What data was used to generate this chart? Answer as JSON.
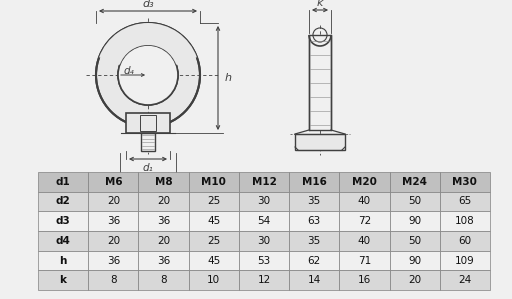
{
  "bg_color": "#f0f0f0",
  "table_header_row": [
    "d1",
    "M6",
    "M8",
    "M10",
    "M12",
    "M16",
    "M20",
    "M24",
    "M30"
  ],
  "table_rows": [
    [
      "d2",
      "20",
      "20",
      "25",
      "30",
      "35",
      "40",
      "50",
      "65"
    ],
    [
      "d3",
      "36",
      "36",
      "45",
      "54",
      "63",
      "72",
      "90",
      "108"
    ],
    [
      "d4",
      "20",
      "20",
      "25",
      "30",
      "35",
      "40",
      "50",
      "60"
    ],
    [
      "h",
      "36",
      "36",
      "45",
      "53",
      "62",
      "71",
      "90",
      "109"
    ],
    [
      "k",
      "8",
      "8",
      "10",
      "12",
      "14",
      "16",
      "20",
      "24"
    ]
  ],
  "header_bg": "#c0c0c0",
  "row_bg_odd": "#d8d8d8",
  "row_bg_even": "#f0f0f0",
  "line_color": "#404040",
  "text_color": "#111111",
  "dim_color": "#404040",
  "fill_light": "#e8e8e8",
  "hatch_color": "#888888"
}
